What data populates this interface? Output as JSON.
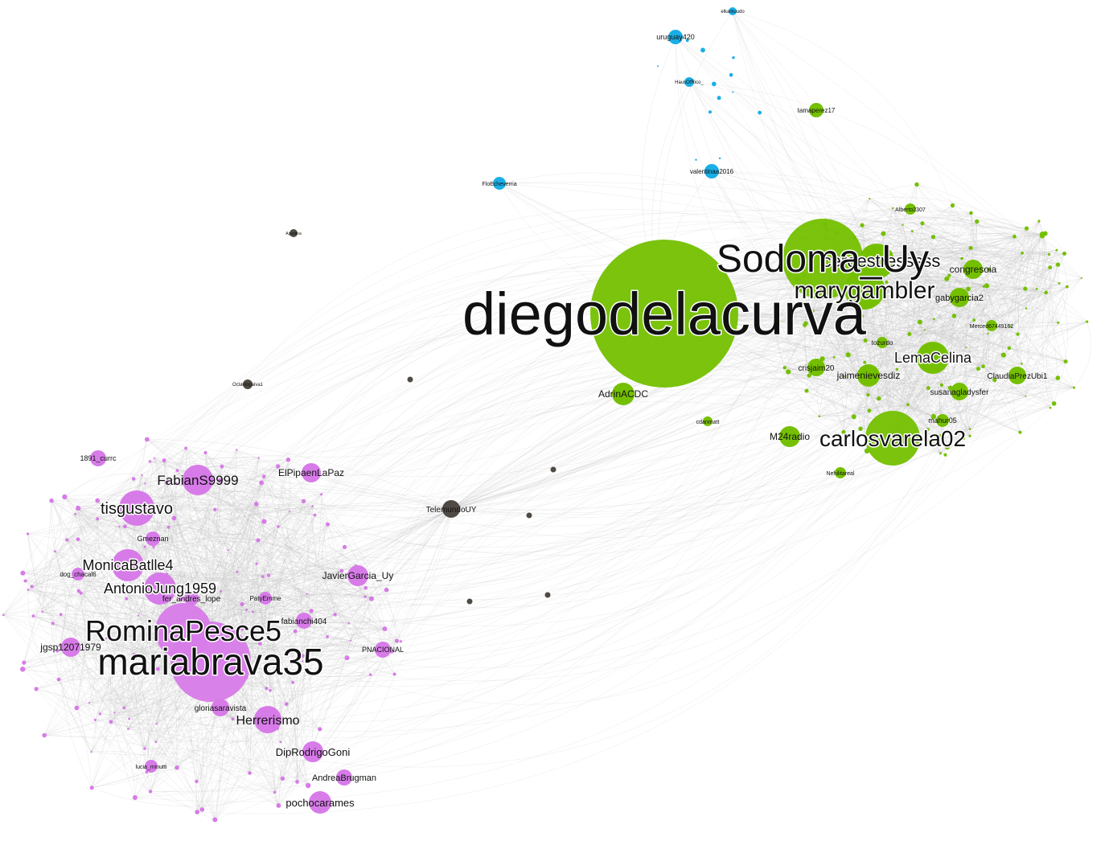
{
  "colors": {
    "green": "#74c000",
    "pink": "#d77be8",
    "blue": "#1aaee6",
    "gray": "#4f4a44",
    "edge": "#bcbcbc",
    "background": "#ffffff"
  },
  "nodes": [
    {
      "id": "diegodelacurva",
      "group": "green",
      "weight": 92,
      "label": "diegodelacurva",
      "label_size": 74
    },
    {
      "id": "sodoma_uy",
      "group": "green",
      "weight": 50,
      "label": "Sodoma_Uy",
      "label_size": 48
    },
    {
      "id": "ceroestresssss",
      "group": "green",
      "weight": 22,
      "label": "ceroestresssss",
      "label_size": 22
    },
    {
      "id": "marygambler",
      "group": "green",
      "weight": 25,
      "label": "marygambler",
      "label_size": 30
    },
    {
      "id": "carlosvarela02",
      "group": "green",
      "weight": 34,
      "label": "carlosvarela02",
      "label_size": 28
    },
    {
      "id": "lemacelina",
      "group": "green",
      "weight": 20,
      "label": "LemaCelina",
      "label_size": 18
    },
    {
      "id": "jaimenievesdiz",
      "group": "green",
      "weight": 14,
      "label": "jaimenievesdiz",
      "label_size": 12
    },
    {
      "id": "claudiaprezubi1",
      "group": "green",
      "weight": 11,
      "label": "ClaudiaPrezUbi1",
      "label_size": 10
    },
    {
      "id": "susanagladysfer",
      "group": "green",
      "weight": 11,
      "label": "susanagladysfer",
      "label_size": 10
    },
    {
      "id": "congresoia",
      "group": "green",
      "weight": 12,
      "label": "congresoia",
      "label_size": 12
    },
    {
      "id": "gabygarcia2",
      "group": "green",
      "weight": 12,
      "label": "gabygarcia2",
      "label_size": 11
    },
    {
      "id": "adrinacdc",
      "group": "green",
      "weight": 14,
      "label": "AdrinACDC",
      "label_size": 12
    },
    {
      "id": "m24radio",
      "group": "green",
      "weight": 13,
      "label": "M24radio",
      "label_size": 12
    },
    {
      "id": "crisjaim20",
      "group": "green",
      "weight": 11,
      "label": "crisjaim20",
      "label_size": 10
    },
    {
      "id": "mahur05",
      "group": "green",
      "weight": 8,
      "label": "mahur05",
      "label_size": 9
    },
    {
      "id": "tozurdo",
      "group": "green",
      "weight": 7,
      "label": "tozurdo",
      "label_size": 8
    },
    {
      "id": "merced",
      "group": "green",
      "weight": 7,
      "label": "Merced67449162",
      "label_size": 7
    },
    {
      "id": "tamaperez17",
      "group": "green",
      "weight": 9,
      "label": "tamaperez17",
      "label_size": 8
    },
    {
      "id": "nehilitareal",
      "group": "green",
      "weight": 7,
      "label": "Nehilitareal",
      "label_size": 7
    },
    {
      "id": "alberto2307",
      "group": "green",
      "weight": 7,
      "label": "Alberto2307",
      "label_size": 7
    },
    {
      "id": "adamhaszc",
      "group": "green",
      "weight": 6,
      "label": "cdanmatt",
      "label_size": 7
    },
    {
      "id": "mariabrava35",
      "group": "pink",
      "weight": 50,
      "label": "mariabrava35",
      "label_size": 46
    },
    {
      "id": "rominapesce5",
      "group": "pink",
      "weight": 35,
      "label": "RominaPesce5",
      "label_size": 36
    },
    {
      "id": "fabians9999",
      "group": "pink",
      "weight": 19,
      "label": "FabianS9999",
      "label_size": 17
    },
    {
      "id": "tisgustavo",
      "group": "pink",
      "weight": 22,
      "label": "tisgustavo",
      "label_size": 20
    },
    {
      "id": "monicabatlle4",
      "group": "pink",
      "weight": 20,
      "label": "MonicaBatlle4",
      "label_size": 18
    },
    {
      "id": "antoniojung1959",
      "group": "pink",
      "weight": 20,
      "label": "AntonioJung1959",
      "label_size": 18
    },
    {
      "id": "herrerismo",
      "group": "pink",
      "weight": 17,
      "label": "Herrerismo",
      "label_size": 16
    },
    {
      "id": "diprodrigogoni",
      "group": "pink",
      "weight": 13,
      "label": "DipRodrigoGoni",
      "label_size": 13
    },
    {
      "id": "andreabrugman",
      "group": "pink",
      "weight": 10,
      "label": "AndreaBrugman",
      "label_size": 11
    },
    {
      "id": "pochocarames",
      "group": "pink",
      "weight": 14,
      "label": "pochocarames",
      "label_size": 13
    },
    {
      "id": "javiergarcia_uy",
      "group": "pink",
      "weight": 13,
      "label": "JavierGarcia_Uy",
      "label_size": 12
    },
    {
      "id": "elpipaenlapaz",
      "group": "pink",
      "weight": 12,
      "label": "ElPipaenLaPaz",
      "label_size": 12
    },
    {
      "id": "jgsp12071979",
      "group": "pink",
      "weight": 12,
      "label": "jgsp12071979",
      "label_size": 12
    },
    {
      "id": "gloriasaravista",
      "group": "pink",
      "weight": 11,
      "label": "gloriasaravista",
      "label_size": 10
    },
    {
      "id": "fer_andres_lope",
      "group": "pink",
      "weight": 9,
      "label": "fer_andres_lope",
      "label_size": 10
    },
    {
      "id": "fabianchi404",
      "group": "pink",
      "weight": 10,
      "label": "fabianchi404",
      "label_size": 10
    },
    {
      "id": "pnacional",
      "group": "pink",
      "weight": 10,
      "label": "PNACIONAL",
      "label_size": 9
    },
    {
      "id": "paty_emme",
      "group": "pink",
      "weight": 8,
      "label": "PatyEmme",
      "label_size": 8
    },
    {
      "id": "1891_currc",
      "group": "pink",
      "weight": 10,
      "label": "1891_currc",
      "label_size": 9
    },
    {
      "id": "gmeznan",
      "group": "pink",
      "weight": 9,
      "label": "Gmeznan",
      "label_size": 9
    },
    {
      "id": "dog_chacal6",
      "group": "pink",
      "weight": 8,
      "label": "dog_chacal6",
      "label_size": 8
    },
    {
      "id": "lucia_minutti",
      "group": "pink",
      "weight": 8,
      "label": "lucia_minutti",
      "label_size": 7
    },
    {
      "id": "uruguay420",
      "group": "blue",
      "weight": 9,
      "label": "uruguay420",
      "label_size": 9
    },
    {
      "id": "valentinaa2016",
      "group": "blue",
      "weight": 9,
      "label": "valentinaa2016",
      "label_size": 8
    },
    {
      "id": "floecheverria",
      "group": "blue",
      "weight": 8,
      "label": "FloEcheverria",
      "label_size": 7
    },
    {
      "id": "hausofrico",
      "group": "blue",
      "weight": 6,
      "label": "HausOfRico_",
      "label_size": 6
    },
    {
      "id": "elkarkuudo",
      "group": "blue",
      "weight": 5,
      "label": "elkarkuudo",
      "label_size": 6
    },
    {
      "id": "telemundouy",
      "group": "gray",
      "weight": 11,
      "label": "TelemundoUY",
      "label_size": 10
    },
    {
      "id": "octaviopaiva1",
      "group": "gray",
      "weight": 6,
      "label": "Octaviopaiva1",
      "label_size": 6
    },
    {
      "id": "agustina",
      "group": "gray",
      "weight": 5,
      "label": "Agustina",
      "label_size": 5
    }
  ]
}
